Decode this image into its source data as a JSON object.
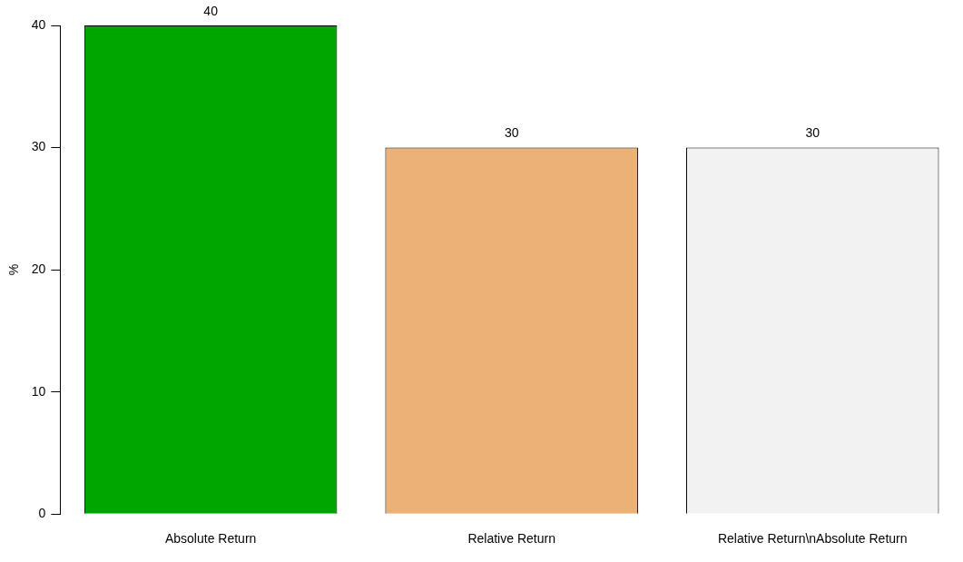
{
  "chart_data": {
    "type": "bar",
    "ylabel": "%",
    "categories": [
      "Absolute Return",
      "Relative Return",
      "Relative Return\\nAbsolute Return"
    ],
    "values": [
      40,
      30,
      30
    ],
    "colors": [
      "#00a600",
      "#ecb176",
      "#f2f2f2"
    ],
    "ylim": [
      0,
      40
    ],
    "yticks": [
      0,
      10,
      20,
      30,
      40
    ],
    "grid": false,
    "legend": false,
    "data_labels": true
  }
}
